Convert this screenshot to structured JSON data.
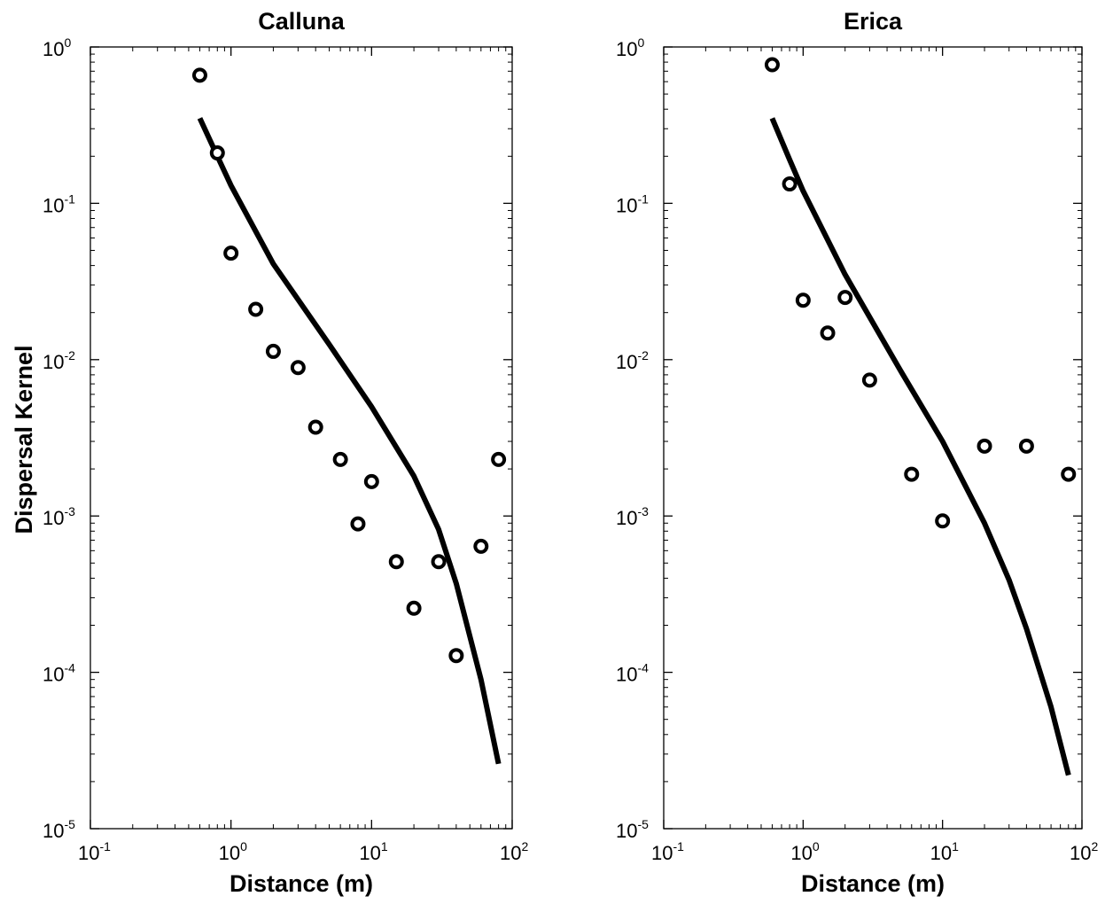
{
  "chart_data": [
    {
      "type": "scatter",
      "title": "Calluna",
      "xlabel": "Distance (m)",
      "ylabel": "Dispersal Kernel",
      "xscale": "log",
      "yscale": "log",
      "xlim": [
        0.1,
        100
      ],
      "ylim": [
        1e-05,
        1
      ],
      "x_ticks": [
        {
          "base": "10",
          "exp": "-1"
        },
        {
          "base": "10",
          "exp": "0"
        },
        {
          "base": "10",
          "exp": "1"
        },
        {
          "base": "10",
          "exp": "2"
        }
      ],
      "y_ticks": [
        {
          "base": "10",
          "exp": "0"
        },
        {
          "base": "10",
          "exp": "-1"
        },
        {
          "base": "10",
          "exp": "-2"
        },
        {
          "base": "10",
          "exp": "-3"
        },
        {
          "base": "10",
          "exp": "-4"
        },
        {
          "base": "10",
          "exp": "-5"
        }
      ],
      "grid": false,
      "series": [
        {
          "kind": "markers",
          "marker": "open-circle",
          "x": [
            0.6,
            0.8,
            1,
            1.5,
            2,
            3,
            4,
            6,
            8,
            10,
            15,
            20,
            30,
            40,
            60,
            80
          ],
          "y": [
            0.66,
            0.21,
            0.048,
            0.021,
            0.0113,
            0.0089,
            0.0037,
            0.0023,
            0.00089,
            0.00166,
            0.00051,
            0.000257,
            0.00051,
            0.000128,
            0.00064,
            0.0023
          ]
        },
        {
          "kind": "fitted-line",
          "x": [
            0.6,
            0.8,
            1,
            2,
            5,
            10,
            20,
            30,
            40,
            60,
            80
          ],
          "y": [
            0.35,
            0.2,
            0.13,
            0.041,
            0.0125,
            0.005,
            0.0018,
            0.00082,
            0.00037,
            9e-05,
            2.6e-05
          ]
        }
      ]
    },
    {
      "type": "scatter",
      "title": "Erica",
      "xlabel": "Distance (m)",
      "ylabel": "",
      "xscale": "log",
      "yscale": "log",
      "xlim": [
        0.1,
        100
      ],
      "ylim": [
        1e-05,
        1
      ],
      "x_ticks": [
        {
          "base": "10",
          "exp": "-1"
        },
        {
          "base": "10",
          "exp": "0"
        },
        {
          "base": "10",
          "exp": "1"
        },
        {
          "base": "10",
          "exp": "2"
        }
      ],
      "y_ticks": [
        {
          "base": "10",
          "exp": "0"
        },
        {
          "base": "10",
          "exp": "-1"
        },
        {
          "base": "10",
          "exp": "-2"
        },
        {
          "base": "10",
          "exp": "-3"
        },
        {
          "base": "10",
          "exp": "-4"
        },
        {
          "base": "10",
          "exp": "-5"
        }
      ],
      "grid": false,
      "series": [
        {
          "kind": "markers",
          "marker": "open-circle",
          "x": [
            0.6,
            0.8,
            1,
            1.5,
            2,
            3,
            6,
            10,
            20,
            40,
            80
          ],
          "y": [
            0.77,
            0.133,
            0.024,
            0.0148,
            0.025,
            0.0074,
            0.00185,
            0.00093,
            0.0028,
            0.0028,
            0.00185
          ]
        },
        {
          "kind": "fitted-line",
          "x": [
            0.6,
            0.8,
            1,
            2,
            5,
            10,
            20,
            30,
            40,
            60,
            80
          ],
          "y": [
            0.35,
            0.19,
            0.12,
            0.035,
            0.0085,
            0.003,
            0.0009,
            0.00039,
            0.00019,
            6e-05,
            2.2e-05
          ]
        }
      ]
    }
  ]
}
